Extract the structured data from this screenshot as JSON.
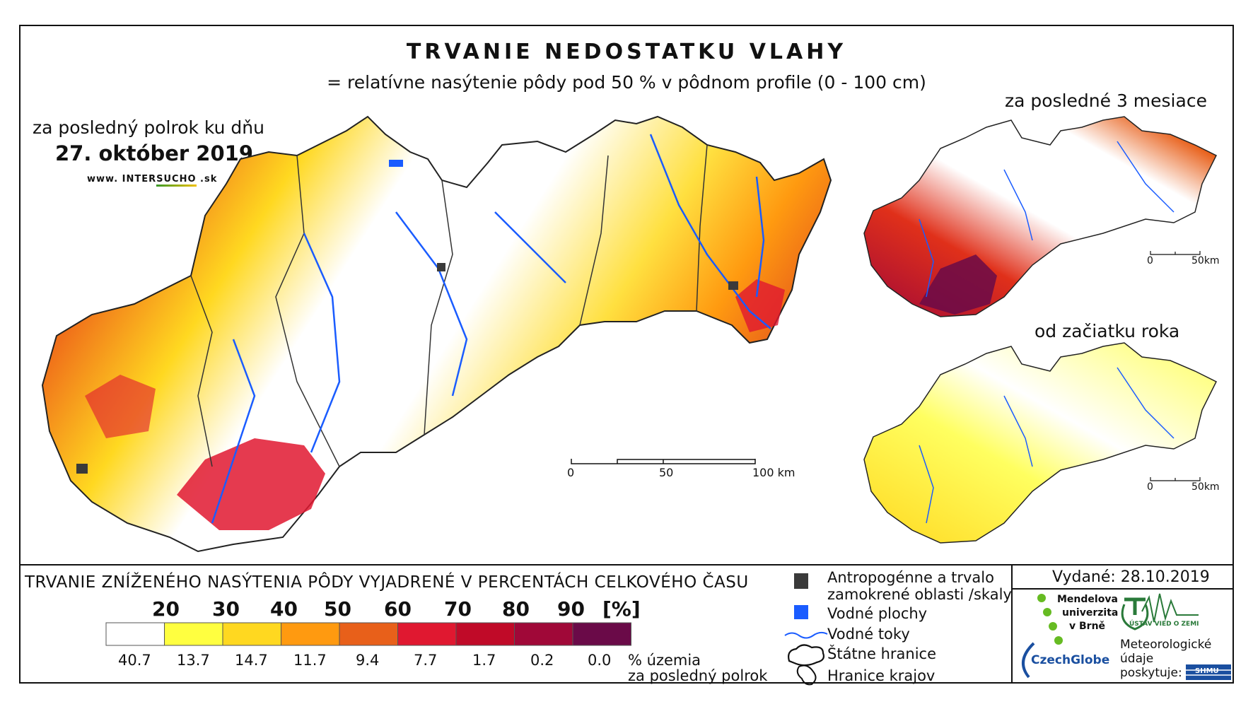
{
  "title": "TRVANIE NEDOSTATKU VLAHY",
  "subtitle": "= relatívne nasýtenie pôdy pod 50 % v pôdnom profile (0 - 100 cm)",
  "main_map": {
    "period_label": "za posledný polrok ku dňu",
    "date": "27. október 2019",
    "website_prefix": "www. INTER",
    "website_highlight": "SUCHO",
    "website_suffix": " .sk",
    "scale": {
      "labels": [
        "0",
        "50",
        "100 km"
      ]
    }
  },
  "inset_3m": {
    "label": "za posledné 3 mesiace",
    "scale": {
      "labels": [
        "0",
        "50km"
      ]
    }
  },
  "inset_ytd": {
    "label": "od začiatku roka",
    "scale": {
      "labels": [
        "0",
        "50km"
      ]
    }
  },
  "legend": {
    "title": "TRVANIE ZNÍŽENÉHO NASÝTENIA PÔDY VYJADRENÉ V PERCENTÁCH CELKOVÉHO ČASU",
    "class_breaks": [
      "20",
      "30",
      "40",
      "50",
      "60",
      "70",
      "80",
      "90"
    ],
    "unit": "[%]",
    "colors": [
      "#ffffff",
      "#ffff40",
      "#ffd820",
      "#ff9a10",
      "#e8601a",
      "#e01830",
      "#c00a28",
      "#a00838",
      "#6a0a48"
    ],
    "area_percent": [
      "40.7",
      "13.7",
      "14.7",
      "11.7",
      "9.4",
      "7.7",
      "1.7",
      "0.2",
      "0.0"
    ],
    "area_unit_line1": "% územia",
    "area_unit_line2": "za posledný polrok"
  },
  "key": {
    "anthropogenic_line1": "Antropogénne a trvalo",
    "anthropogenic_line2": "zamokrené oblasti /skaly",
    "water_bodies": "Vodné plochy",
    "rivers": "Vodné toky",
    "state_border": "Štátne hranice",
    "regional_border": "Hranice krajov",
    "colors": {
      "anthropogenic": "#3a3a3a",
      "water_bodies": "#1a5cff",
      "rivers": "#1a5cff"
    }
  },
  "issued": "Vydané: 28.10.2019",
  "logos": {
    "mendel_line1": "Mendelova",
    "mendel_line2": "univerzita",
    "mendel_line3": "v Brně",
    "czechglobe_a": "Czech",
    "czechglobe_b": "Globe",
    "institute": "ÚSTAV VIED O ZEMI",
    "meteo_line1": "Meteorologické",
    "meteo_line2": "údaje",
    "meteo_line3": "poskytuje:",
    "shmu": "SHMU"
  }
}
